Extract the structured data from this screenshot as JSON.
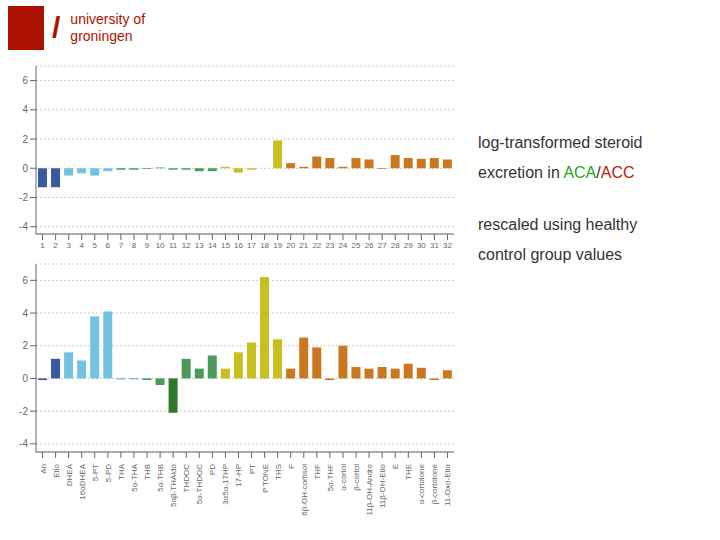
{
  "chart_data": [
    {
      "type": "bar",
      "categories": [
        "1",
        "2",
        "3",
        "4",
        "5",
        "6",
        "7",
        "8",
        "9",
        "10",
        "11",
        "12",
        "13",
        "14",
        "15",
        "16",
        "17",
        "18",
        "19",
        "20",
        "21",
        "22",
        "23",
        "24",
        "25",
        "26",
        "27",
        "28",
        "29",
        "30",
        "31",
        "32"
      ],
      "values": [
        -1.3,
        -1.3,
        -0.5,
        -0.35,
        -0.5,
        -0.2,
        -0.1,
        -0.1,
        -0.05,
        0.05,
        -0.1,
        -0.1,
        -0.2,
        -0.2,
        0.1,
        -0.3,
        -0.1,
        0.0,
        1.9,
        0.35,
        0.1,
        0.8,
        0.7,
        0.1,
        0.7,
        0.6,
        -0.05,
        0.9,
        0.7,
        0.65,
        0.7,
        0.6
      ],
      "colors": [
        "#3A5AA0",
        "#3A5AA0",
        "#73C2E0",
        "#73C2E0",
        "#73C2E0",
        "#73C2E0",
        "#4A9A5A",
        "#4A9A5A",
        "#4A9A5A",
        "#4A9A5A",
        "#4A9A5A",
        "#4A9A5A",
        "#4A9A5A",
        "#4A9A5A",
        "#C8C020",
        "#C8C020",
        "#C8C020",
        "#C8C020",
        "#C8C020",
        "#C97820",
        "#C97820",
        "#C97820",
        "#C97820",
        "#C97820",
        "#C97820",
        "#C97820",
        "#C97820",
        "#C97820",
        "#C97820",
        "#C97820",
        "#C97820",
        "#C97820"
      ],
      "ylim": [
        -4.5,
        7.0
      ],
      "yticks": [
        -4,
        -2,
        0,
        2,
        4,
        6
      ],
      "grid": true,
      "annotations": [
        [
          {
            "text": "/",
            "color": "#AA1100"
          }
        ],
        [
          {
            "text": "university of",
            "color": "#AA1100"
          }
        ],
        [
          {
            "text": "groningen",
            "color": "#AA1100"
          }
        ],
        [
          {
            "text": "log-transformed steroid"
          }
        ],
        [
          {
            "text": "excretion in "
          },
          {
            "text": "ACA",
            "color": "#22AA22"
          },
          {
            "text": "/"
          },
          {
            "text": "ACC",
            "color": "#BB2200"
          }
        ],
        [
          {
            "text": "rescaled using healthy"
          }
        ],
        [
          {
            "text": "control group values"
          }
        ]
      ]
    },
    {
      "type": "bar",
      "categories": [
        "An",
        "Etio",
        "DHEA",
        "16αDHEA",
        "5-PT",
        "5-PD",
        "THA",
        "5α-THA",
        "THB",
        "5α-THB",
        "5αβ-THAldo",
        "THDOC",
        "5α-THDOC",
        "PD",
        "3α5α-17HP",
        "17-HP",
        "PT",
        "P'TONE",
        "THS",
        "F",
        "6β-OH-cortisol",
        "THF",
        "5α-THF",
        "α-cortol",
        "β-cortol",
        "11β-OH-Andro",
        "11β-OH-Etio",
        "E",
        "THE",
        "α-cortolone",
        "β-cortolone",
        "11-Oxo-Etio"
      ],
      "values": [
        -0.1,
        1.2,
        1.6,
        1.1,
        3.8,
        4.1,
        -0.05,
        -0.05,
        -0.1,
        -0.4,
        -2.1,
        1.2,
        0.6,
        1.4,
        0.6,
        1.6,
        2.2,
        6.2,
        2.4,
        0.6,
        2.5,
        1.9,
        -0.1,
        2.0,
        0.7,
        0.6,
        0.7,
        0.6,
        0.9,
        0.65,
        -0.1,
        0.5
      ],
      "colors": [
        "#3A5AA0",
        "#3A5AA0",
        "#73C2E0",
        "#73C2E0",
        "#73C2E0",
        "#73C2E0",
        "#4A9A5A",
        "#4A9A5A",
        "#4A9A5A",
        "#4A9A5A",
        "#2E7A2A",
        "#4A9A5A",
        "#4A9A5A",
        "#4A9A5A",
        "#C8C020",
        "#C8C020",
        "#C8C020",
        "#C8C020",
        "#C8C020",
        "#C97820",
        "#C97820",
        "#C97820",
        "#C97820",
        "#C97820",
        "#C97820",
        "#C97820",
        "#C97820",
        "#C97820",
        "#C97820",
        "#C97820",
        "#C97820",
        "#C97820"
      ],
      "ylim": [
        -4.5,
        7.0
      ],
      "yticks": [
        -4,
        -2,
        0,
        2,
        4,
        6
      ],
      "grid": true
    }
  ]
}
